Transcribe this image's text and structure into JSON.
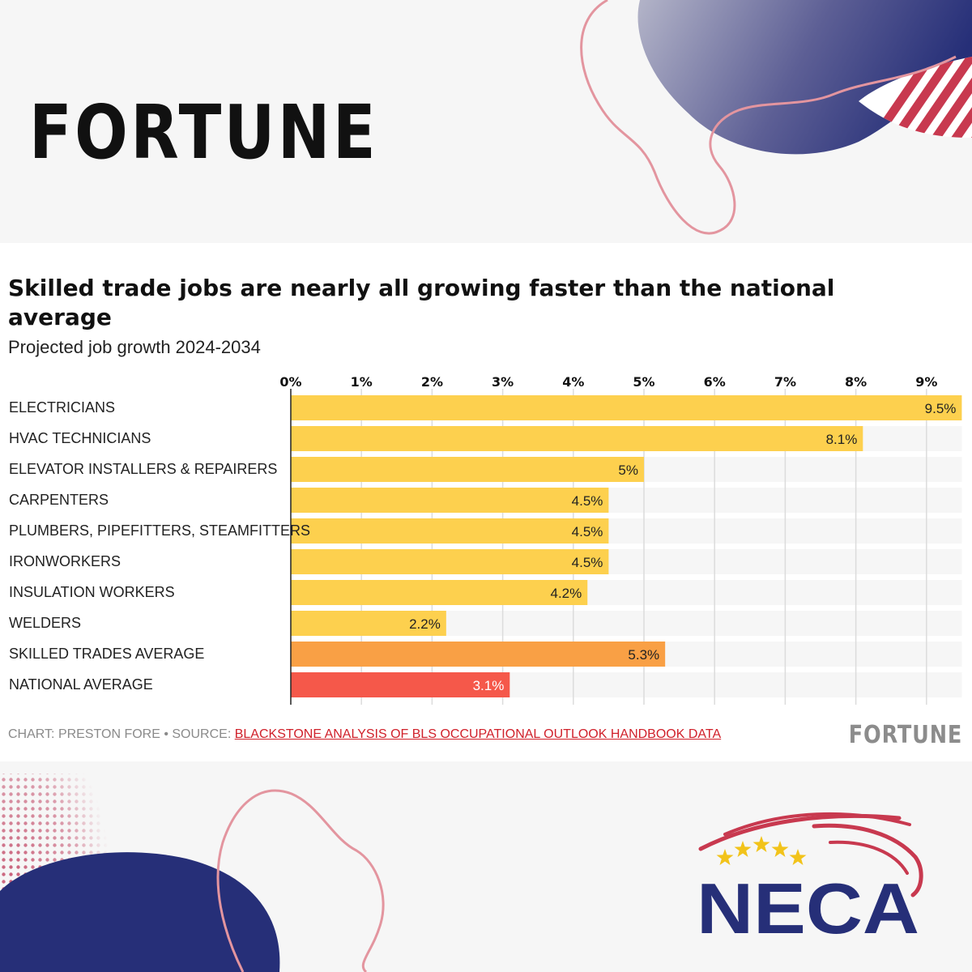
{
  "brand": {
    "fortune_logo": "FORTUNE",
    "footer_logo": "FORTUNE",
    "neca_logo": "NECA",
    "colors": {
      "navy": "#262f78",
      "red": "#c8394f",
      "pink_outline": "#e3959f",
      "bar_yellow": "#fdd04e",
      "bar_orange": "#f9a045",
      "bar_red": "#f5584a"
    }
  },
  "footer": {
    "credit": "CHART: PRESTON FORE • SOURCE: ",
    "source_link": "BLACKSTONE ANALYSIS OF BLS OCCUPATIONAL OUTLOOK HANDBOOK DATA"
  },
  "chart_data": {
    "type": "bar",
    "orientation": "horizontal",
    "title": "Skilled trade jobs are nearly all growing faster than the national average",
    "subtitle": "Projected job growth 2024-2034",
    "categories": [
      "ELECTRICIANS",
      "HVAC TECHNICIANS",
      "ELEVATOR INSTALLERS & REPAIRERS",
      "CARPENTERS",
      "PLUMBERS, PIPEFITTERS, STEAMFITTERS",
      "IRONWORKERS",
      "INSULATION WORKERS",
      "WELDERS",
      "SKILLED TRADES AVERAGE",
      "NATIONAL AVERAGE"
    ],
    "values": [
      9.5,
      8.1,
      5,
      4.5,
      4.5,
      4.5,
      4.2,
      2.2,
      5.3,
      3.1
    ],
    "value_labels": [
      "9.5%",
      "8.1%",
      "5%",
      "4.5%",
      "4.5%",
      "4.5%",
      "4.2%",
      "2.2%",
      "5.3%",
      "3.1%"
    ],
    "bar_colors": [
      "#fdd04e",
      "#fdd04e",
      "#fdd04e",
      "#fdd04e",
      "#fdd04e",
      "#fdd04e",
      "#fdd04e",
      "#fdd04e",
      "#f9a045",
      "#f5584a"
    ],
    "x_ticks": [
      0,
      1,
      2,
      3,
      4,
      5,
      6,
      7,
      8,
      9
    ],
    "x_tick_labels": [
      "0%",
      "1%",
      "2%",
      "3%",
      "4%",
      "5%",
      "6%",
      "7%",
      "8%",
      "9%"
    ],
    "xlim": [
      0,
      9.5
    ],
    "axis_position": "top",
    "grid": true,
    "legend": "none"
  }
}
